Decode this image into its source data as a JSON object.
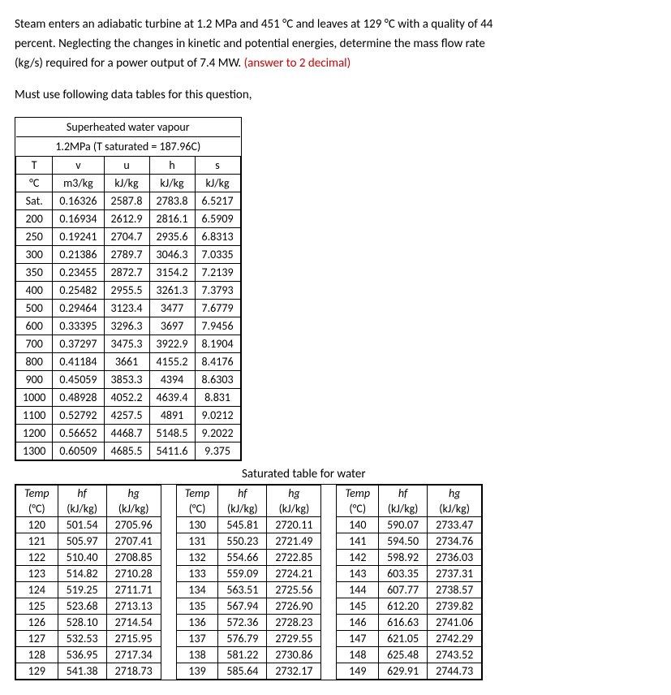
{
  "problem": {
    "line1": "Steam enters an adiabatic turbine at 1.2 MPa and 451 °C and leaves at 129 °C with a quality of 44",
    "line2": "percent. Neglecting the changes in kinetic and potential energies, determine the mass flow rate",
    "line3a": "(kg/s) required for a power output of 7.4 MW. ",
    "line3b": "(answer to 2 decimal)",
    "line4": "Must use following data tables for this question,"
  },
  "superheated": {
    "title1": "Superheated water vapour",
    "title2": "1.2MPa (T saturated = 187.96C)",
    "headers1": [
      "T",
      "v",
      "u",
      "h",
      "s"
    ],
    "headers2": [
      "°C",
      "m3/kg",
      "kJ/kg",
      "kJ/kg",
      "kJ/kg"
    ],
    "rows": [
      [
        "Sat.",
        "0.16326",
        "2587.8",
        "2783.8",
        "6.5217"
      ],
      [
        "200",
        "0.16934",
        "2612.9",
        "2816.1",
        "6.5909"
      ],
      [
        "250",
        "0.19241",
        "2704.7",
        "2935.6",
        "6.8313"
      ],
      [
        "300",
        "0.21386",
        "2789.7",
        "3046.3",
        "7.0335"
      ],
      [
        "350",
        "0.23455",
        "2872.7",
        "3154.2",
        "7.2139"
      ],
      [
        "400",
        "0.25482",
        "2955.5",
        "3261.3",
        "7.3793"
      ],
      [
        "500",
        "0.29464",
        "3123.4",
        "3477",
        "7.6779"
      ],
      [
        "600",
        "0.33395",
        "3296.3",
        "3697",
        "7.9456"
      ],
      [
        "700",
        "0.37297",
        "3475.3",
        "3922.9",
        "8.1904"
      ],
      [
        "800",
        "0.41184",
        "3661",
        "4155.2",
        "8.4176"
      ],
      [
        "900",
        "0.45059",
        "3853.3",
        "4394",
        "8.6303"
      ],
      [
        "1000",
        "0.48928",
        "4052.2",
        "4639.4",
        "8.831"
      ],
      [
        "1100",
        "0.52792",
        "4257.5",
        "4891",
        "9.0212"
      ],
      [
        "1200",
        "0.56652",
        "4468.7",
        "5148.5",
        "9.2022"
      ],
      [
        "1300",
        "0.60509",
        "4685.5",
        "5411.6",
        "9.375"
      ]
    ]
  },
  "saturated": {
    "title": "Saturated table for water",
    "h1": {
      "temp": "Temp",
      "tc": "(°C)",
      "hf": "hf",
      "hfu": "(kJ/kg)",
      "hg": "hg",
      "hgu": "(kJ/kg)"
    },
    "block1": [
      [
        "120",
        "501.54",
        "2705.96"
      ],
      [
        "121",
        "505.97",
        "2707.41"
      ],
      [
        "122",
        "510.40",
        "2708.85"
      ],
      [
        "123",
        "514.82",
        "2710.28"
      ],
      [
        "124",
        "519.25",
        "2711.71"
      ],
      [
        "125",
        "523.68",
        "2713.13"
      ],
      [
        "126",
        "528.10",
        "2714.54"
      ],
      [
        "127",
        "532.53",
        "2715.95"
      ],
      [
        "128",
        "536.95",
        "2717.34"
      ],
      [
        "129",
        "541.38",
        "2718.73"
      ]
    ],
    "block2": [
      [
        "130",
        "545.81",
        "2720.11"
      ],
      [
        "131",
        "550.23",
        "2721.49"
      ],
      [
        "132",
        "554.66",
        "2722.85"
      ],
      [
        "133",
        "559.09",
        "2724.21"
      ],
      [
        "134",
        "563.51",
        "2725.56"
      ],
      [
        "135",
        "567.94",
        "2726.90"
      ],
      [
        "136",
        "572.36",
        "2728.23"
      ],
      [
        "137",
        "576.79",
        "2729.55"
      ],
      [
        "138",
        "581.22",
        "2730.86"
      ],
      [
        "139",
        "585.64",
        "2732.17"
      ]
    ],
    "block3": [
      [
        "140",
        "590.07",
        "2733.47"
      ],
      [
        "141",
        "594.50",
        "2734.76"
      ],
      [
        "142",
        "598.92",
        "2736.03"
      ],
      [
        "143",
        "603.35",
        "2737.31"
      ],
      [
        "144",
        "607.77",
        "2738.57"
      ],
      [
        "145",
        "612.20",
        "2739.82"
      ],
      [
        "146",
        "616.63",
        "2741.06"
      ],
      [
        "147",
        "621.05",
        "2742.29"
      ],
      [
        "148",
        "625.48",
        "2743.52"
      ],
      [
        "149",
        "629.91",
        "2744.73"
      ]
    ]
  }
}
